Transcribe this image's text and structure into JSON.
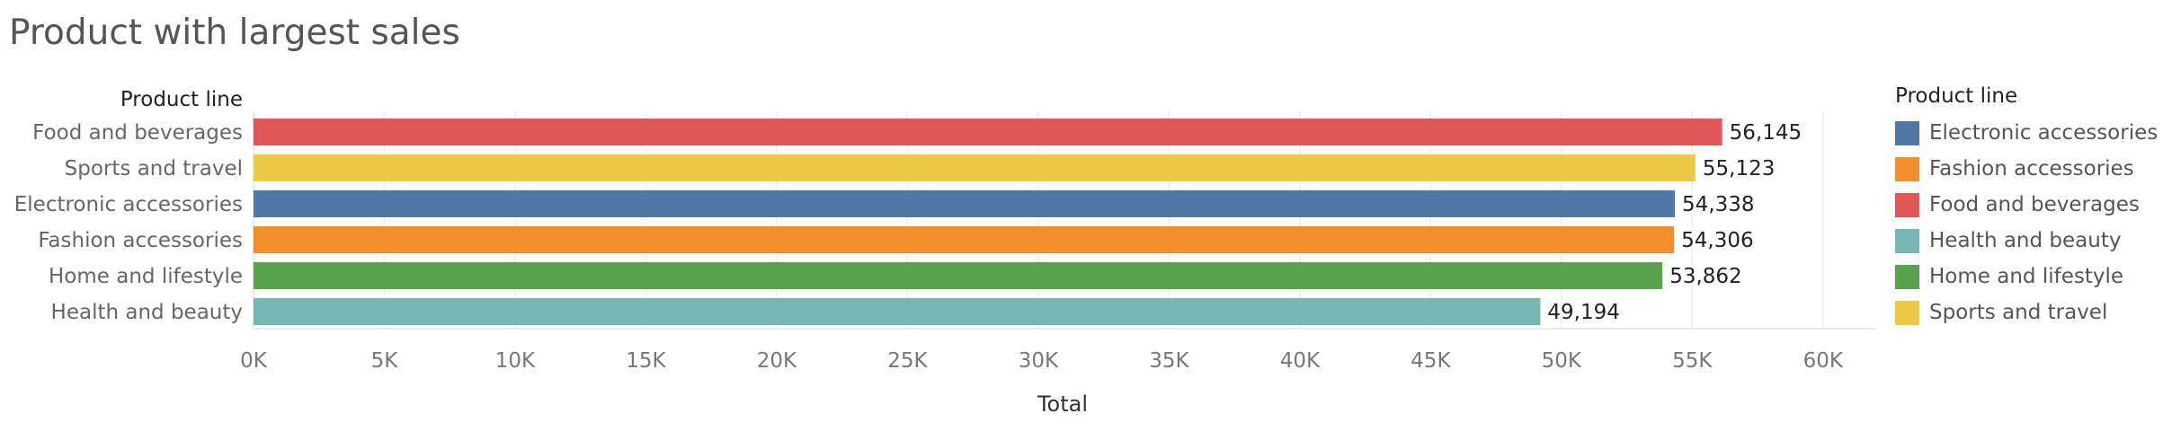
{
  "chart_data": {
    "type": "bar",
    "orientation": "horizontal",
    "title": "Product with largest sales",
    "category_header": "Product line",
    "xlabel": "Total",
    "xlim": [
      0,
      62000
    ],
    "x_ticks": [
      0,
      5000,
      10000,
      15000,
      20000,
      25000,
      30000,
      35000,
      40000,
      45000,
      50000,
      55000,
      60000
    ],
    "x_tick_labels": [
      "0K",
      "5K",
      "10K",
      "15K",
      "20K",
      "25K",
      "30K",
      "35K",
      "40K",
      "45K",
      "50K",
      "55K",
      "60K"
    ],
    "grid": true,
    "categories": [
      "Food and beverages",
      "Sports and travel",
      "Electronic accessories",
      "Fashion accessories",
      "Home and lifestyle",
      "Health and beauty"
    ],
    "values": [
      56145,
      55123,
      54338,
      54306,
      53862,
      49194
    ],
    "value_labels": [
      "56,145",
      "55,123",
      "54,338",
      "54,306",
      "53,862",
      "49,194"
    ],
    "bar_colors": [
      "#e15759",
      "#edc948",
      "#4e79a7",
      "#f28e2b",
      "#59a14f",
      "#76b7b2"
    ],
    "legend": {
      "title": "Product line",
      "placement": "right",
      "items": [
        {
          "label": "Electronic accessories",
          "color": "#4e79a7"
        },
        {
          "label": "Fashion accessories",
          "color": "#f28e2b"
        },
        {
          "label": "Food and beverages",
          "color": "#e15759"
        },
        {
          "label": "Health and beauty",
          "color": "#76b7b2"
        },
        {
          "label": "Home and lifestyle",
          "color": "#59a14f"
        },
        {
          "label": "Sports and travel",
          "color": "#edc948"
        }
      ]
    }
  }
}
